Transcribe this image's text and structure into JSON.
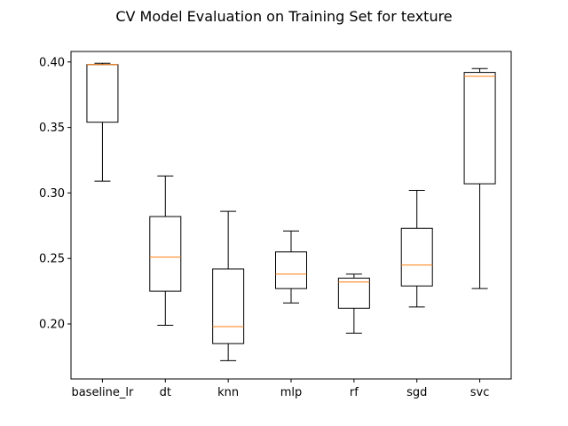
{
  "chart_data": {
    "type": "box",
    "title": "CV Model Evaluation on Training Set for texture",
    "xlabel": "",
    "ylabel": "",
    "categories": [
      "baseline_lr",
      "dt",
      "knn",
      "mlp",
      "rf",
      "sgd",
      "svc"
    ],
    "ylim": [
      0.158,
      0.408
    ],
    "yticks": [
      0.2,
      0.25,
      0.3,
      0.35,
      0.4
    ],
    "ytick_labels": [
      "0.20",
      "0.25",
      "0.30",
      "0.35",
      "0.40"
    ],
    "grid": false,
    "boxes": [
      {
        "name": "baseline_lr",
        "whislo": 0.309,
        "q1": 0.354,
        "med": 0.398,
        "q3": 0.398,
        "whishi": 0.399
      },
      {
        "name": "dt",
        "whislo": 0.199,
        "q1": 0.225,
        "med": 0.251,
        "q3": 0.282,
        "whishi": 0.313
      },
      {
        "name": "knn",
        "whislo": 0.172,
        "q1": 0.185,
        "med": 0.198,
        "q3": 0.242,
        "whishi": 0.286
      },
      {
        "name": "mlp",
        "whislo": 0.216,
        "q1": 0.227,
        "med": 0.238,
        "q3": 0.255,
        "whishi": 0.271
      },
      {
        "name": "rf",
        "whislo": 0.193,
        "q1": 0.212,
        "med": 0.232,
        "q3": 0.235,
        "whishi": 0.238
      },
      {
        "name": "sgd",
        "whislo": 0.213,
        "q1": 0.229,
        "med": 0.245,
        "q3": 0.273,
        "whishi": 0.302
      },
      {
        "name": "svc",
        "whislo": 0.227,
        "q1": 0.307,
        "med": 0.389,
        "q3": 0.392,
        "whishi": 0.395
      }
    ],
    "colors": {
      "box": "#000000",
      "median": "#ff7f0e",
      "axis": "#000000",
      "background": "#ffffff"
    }
  }
}
